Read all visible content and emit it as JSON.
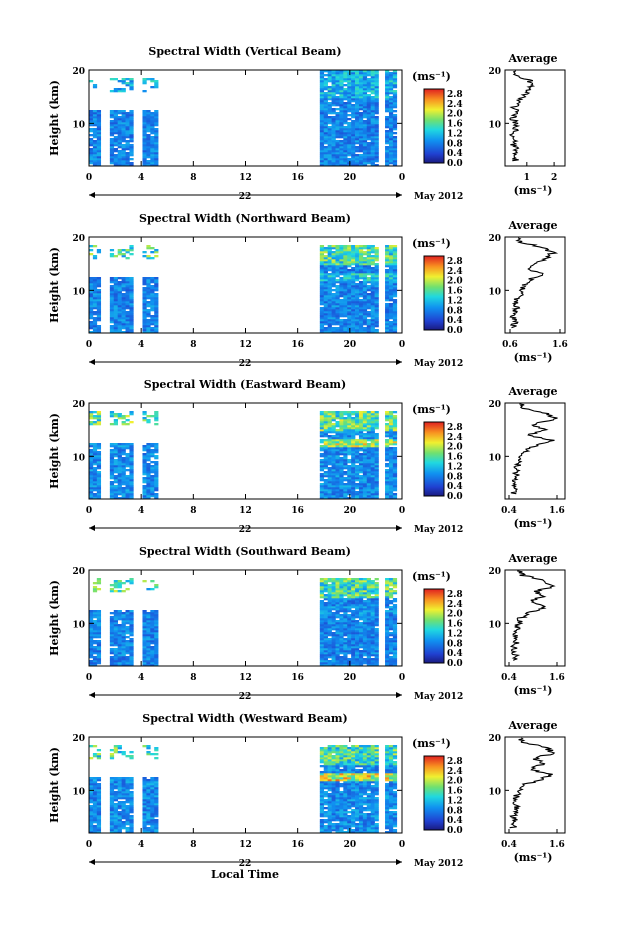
{
  "chart_data": {
    "type": "heatmap",
    "xlabel": "Local Time",
    "x_ticks": [
      "0",
      "4",
      "8",
      "12",
      "16",
      "20",
      "0"
    ],
    "xlim": [
      0,
      24
    ],
    "date_day": "22",
    "date_month": "May 2012",
    "ylabel": "Height (km)",
    "y_ticks": [
      "10",
      "20"
    ],
    "ylim": [
      2,
      20
    ],
    "colorbar": {
      "unit_label": "(ms⁻¹)",
      "ticks": [
        "0.0",
        "0.4",
        "0.8",
        "1.2",
        "1.6",
        "2.0",
        "2.4",
        "2.8"
      ],
      "range": [
        0,
        3.0
      ]
    },
    "data_blocks_hours": [
      [
        0.0,
        0.8
      ],
      [
        1.6,
        3.4
      ],
      [
        4.1,
        5.3
      ],
      [
        17.7,
        22.2
      ],
      [
        22.7,
        23.4
      ]
    ],
    "avg_title": "Average",
    "avg_xlabel": "(ms⁻¹)",
    "panels": [
      {
        "title": "Spectral Width (Vertical Beam)",
        "level": 0.85,
        "upper_level": 1.1,
        "burst": 0.0,
        "avg_ticks": [
          "1",
          "2"
        ],
        "avg_xlim": [
          0.2,
          2.4
        ],
        "avg_profile": [
          [
            3,
            0.6
          ],
          [
            4,
            0.55
          ],
          [
            5,
            0.6
          ],
          [
            6,
            0.5
          ],
          [
            7,
            0.55
          ],
          [
            8,
            0.5
          ],
          [
            9,
            0.6
          ],
          [
            10,
            0.55
          ],
          [
            11,
            0.5
          ],
          [
            12,
            0.6
          ],
          [
            13,
            0.55
          ],
          [
            14,
            0.7
          ],
          [
            15,
            0.85
          ],
          [
            16,
            1.0
          ],
          [
            17,
            1.2
          ],
          [
            18,
            1.1
          ],
          [
            19,
            0.6
          ],
          [
            20,
            0.5
          ]
        ]
      },
      {
        "title": "Spectral Width (Northward Beam)",
        "level": 0.85,
        "upper_level": 1.5,
        "burst": 1.4,
        "avg_ticks": [
          "0.6",
          "1.6"
        ],
        "avg_xlim": [
          0.5,
          1.7
        ],
        "avg_profile": [
          [
            3,
            0.65
          ],
          [
            4,
            0.7
          ],
          [
            5,
            0.65
          ],
          [
            6,
            0.7
          ],
          [
            7,
            0.75
          ],
          [
            8,
            0.7
          ],
          [
            9,
            0.8
          ],
          [
            10,
            0.85
          ],
          [
            11,
            0.9
          ],
          [
            12,
            1.0
          ],
          [
            13,
            1.25
          ],
          [
            14,
            0.95
          ],
          [
            15,
            1.15
          ],
          [
            16,
            1.3
          ],
          [
            17,
            1.45
          ],
          [
            18,
            1.3
          ],
          [
            19,
            0.8
          ],
          [
            20,
            0.7
          ]
        ]
      },
      {
        "title": "Spectral Width (Eastward Beam)",
        "level": 0.9,
        "upper_level": 1.6,
        "burst": 2.1,
        "avg_ticks": [
          "0.4",
          "1.6"
        ],
        "avg_xlim": [
          0.3,
          1.8
        ],
        "avg_profile": [
          [
            3,
            0.5
          ],
          [
            4,
            0.55
          ],
          [
            5,
            0.5
          ],
          [
            6,
            0.6
          ],
          [
            7,
            0.55
          ],
          [
            8,
            0.6
          ],
          [
            9,
            0.65
          ],
          [
            10,
            0.7
          ],
          [
            11,
            0.8
          ],
          [
            12,
            1.1
          ],
          [
            13,
            1.5
          ],
          [
            14,
            0.9
          ],
          [
            15,
            1.3
          ],
          [
            16,
            1.0
          ],
          [
            17,
            1.55
          ],
          [
            18,
            1.4
          ],
          [
            19,
            0.8
          ],
          [
            20,
            0.7
          ]
        ]
      },
      {
        "title": "Spectral Width (Southward Beam)",
        "level": 0.85,
        "upper_level": 1.5,
        "burst": 1.0,
        "avg_ticks": [
          "0.4",
          "1.6"
        ],
        "avg_xlim": [
          0.3,
          1.8
        ],
        "avg_profile": [
          [
            3,
            0.5
          ],
          [
            4,
            0.55
          ],
          [
            5,
            0.5
          ],
          [
            6,
            0.55
          ],
          [
            7,
            0.6
          ],
          [
            8,
            0.55
          ],
          [
            9,
            0.6
          ],
          [
            10,
            0.65
          ],
          [
            11,
            0.7
          ],
          [
            12,
            0.9
          ],
          [
            13,
            1.3
          ],
          [
            14,
            0.9
          ],
          [
            15,
            1.2
          ],
          [
            16,
            1.1
          ],
          [
            17,
            1.5
          ],
          [
            18,
            1.3
          ],
          [
            19,
            0.75
          ],
          [
            20,
            0.6
          ]
        ]
      },
      {
        "title": "Spectral Width (Westward Beam)",
        "level": 0.9,
        "upper_level": 1.5,
        "burst": 2.3,
        "avg_ticks": [
          "0.4",
          "1.6"
        ],
        "avg_xlim": [
          0.3,
          1.8
        ],
        "avg_profile": [
          [
            3,
            0.5
          ],
          [
            4,
            0.55
          ],
          [
            5,
            0.5
          ],
          [
            6,
            0.55
          ],
          [
            7,
            0.6
          ],
          [
            8,
            0.55
          ],
          [
            9,
            0.6
          ],
          [
            10,
            0.65
          ],
          [
            11,
            0.75
          ],
          [
            12,
            1.2
          ],
          [
            13,
            1.45
          ],
          [
            14,
            0.9
          ],
          [
            15,
            1.25
          ],
          [
            16,
            1.05
          ],
          [
            17,
            1.5
          ],
          [
            18,
            1.35
          ],
          [
            19,
            0.8
          ],
          [
            20,
            0.65
          ]
        ]
      }
    ]
  }
}
